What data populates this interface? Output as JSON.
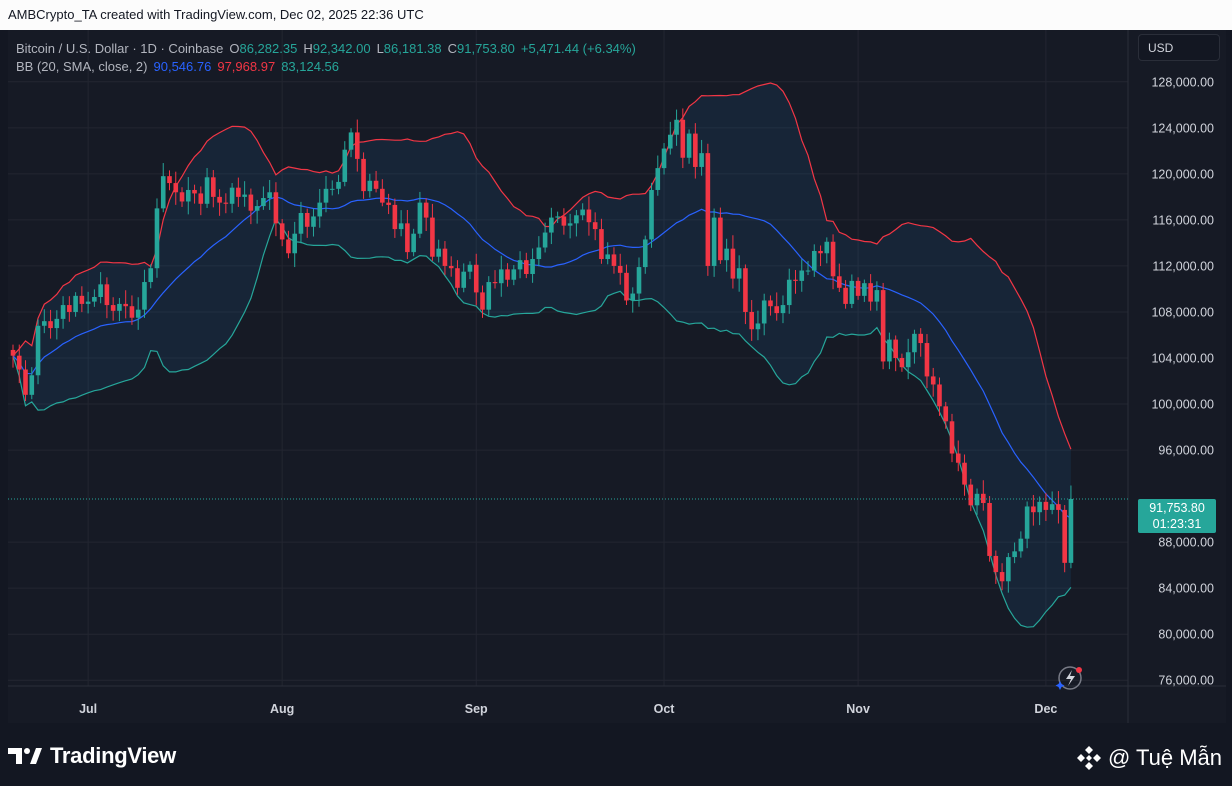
{
  "header": {
    "credit": "AMBCrypto_TA created with TradingView.com, Dec 02, 2025 22:36 UTC"
  },
  "legend": {
    "symbol": "Bitcoin / U.S. Dollar · 1D · Coinbase",
    "o_label": "O",
    "o_value": "86,282.35",
    "h_label": "H",
    "h_value": "92,342.00",
    "l_label": "L",
    "l_value": "86,181.38",
    "c_label": "C",
    "c_value": "91,753.80",
    "change": "+5,471.44 (+6.34%)",
    "bb_label": "BB (20, SMA, close, 2)",
    "bb_basis": "90,546.76",
    "bb_upper": "97,968.97",
    "bb_lower": "83,124.56"
  },
  "currency_button": "USD",
  "price_tag": {
    "price": "91,753.80",
    "countdown": "01:23:31"
  },
  "footer": {
    "brand": "TradingView",
    "watermark": "@ Tuệ Mẫn"
  },
  "colors": {
    "up": "#26a69a",
    "down": "#f23645",
    "basis": "#2962ff",
    "upper": "#f23645",
    "lower": "#26a69a",
    "fill": "#2196f3"
  },
  "chart_data": {
    "type": "candlestick",
    "title": "Bitcoin / U.S. Dollar · 1D · Coinbase",
    "y_ticks": [
      76000,
      80000,
      84000,
      88000,
      96000,
      100000,
      104000,
      108000,
      112000,
      116000,
      120000,
      124000,
      128000
    ],
    "y_tick_labels": [
      "76,000.00",
      "80,000.00",
      "84,000.00",
      "88,000.00",
      "96,000.00",
      "100,000.00",
      "104,000.00",
      "108,000.00",
      "112,000.00",
      "116,000.00",
      "120,000.00",
      "124,000.00",
      "128,000.00"
    ],
    "ylim": [
      75500,
      132500
    ],
    "x_month_labels": [
      {
        "label": "Jul",
        "index": 12
      },
      {
        "label": "Aug",
        "index": 43
      },
      {
        "label": "Sep",
        "index": 74
      },
      {
        "label": "Oct",
        "index": 104
      },
      {
        "label": "Nov",
        "index": 135
      },
      {
        "label": "Dec",
        "index": 165
      }
    ],
    "closes": [
      104200,
      103000,
      100800,
      102500,
      106800,
      107200,
      106600,
      107400,
      108600,
      108000,
      109400,
      108700,
      108900,
      109300,
      110400,
      108600,
      108100,
      108700,
      108500,
      107500,
      108200,
      110600,
      111800,
      117000,
      119800,
      119200,
      118400,
      117600,
      118600,
      118300,
      117400,
      119700,
      118000,
      117500,
      117400,
      118800,
      118000,
      118200,
      116800,
      117200,
      117900,
      118400,
      115700,
      114300,
      113100,
      114800,
      116600,
      115400,
      116300,
      117500,
      118700,
      118700,
      119300,
      122100,
      123600,
      121300,
      118500,
      119400,
      118700,
      117500,
      117300,
      115200,
      115700,
      113200,
      114800,
      117500,
      116200,
      112800,
      113500,
      112000,
      111800,
      110100,
      111500,
      112100,
      109700,
      108200,
      110600,
      110500,
      111700,
      110800,
      111700,
      112500,
      111300,
      112600,
      113600,
      114900,
      116200,
      116300,
      115500,
      115700,
      116400,
      116900,
      115800,
      115200,
      112600,
      113000,
      112000,
      111400,
      109000,
      109600,
      111900,
      114300,
      118600,
      120500,
      122200,
      123400,
      124700,
      121400,
      123500,
      120600,
      121800,
      112000,
      116200,
      112500,
      113500,
      110900,
      111800,
      108000,
      106500,
      107000,
      109000,
      108500,
      107900,
      108600,
      110800,
      110700,
      111600,
      111600,
      113300,
      113100,
      114100,
      111100,
      110100,
      108700,
      110700,
      109400,
      110500,
      108900,
      109900,
      103700,
      105600,
      104000,
      103200,
      104500,
      106100,
      105300,
      102400,
      101700,
      99800,
      98500,
      95700,
      94900,
      93000,
      91200,
      92200,
      91400,
      86800,
      85400,
      84600,
      86700,
      87200,
      88300,
      91100,
      90600,
      91500,
      90800,
      91300,
      90800,
      86200,
      91750
    ],
    "bb_basis_last": 90546.76,
    "bb_upper_last": 97968.97,
    "bb_lower_last": 83124.56,
    "last_close": 91753.8
  }
}
